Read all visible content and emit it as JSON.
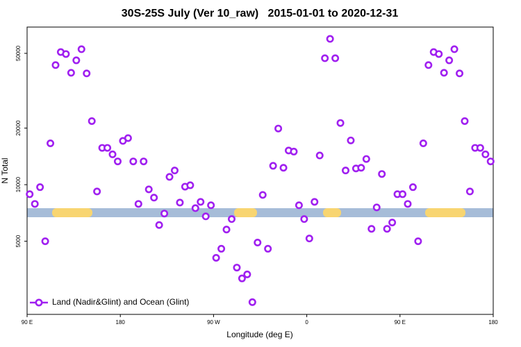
{
  "chart_data": {
    "type": "scatter",
    "title": "30S-25S July (Ver 10_raw)   2015-01-01 to 2020-12-31",
    "x_label": "Longitude (deg E)",
    "y_label": "N Total",
    "log_y": true,
    "legend": "bottom-left",
    "xlim": [
      90,
      540
    ],
    "xticks": [
      {
        "value": 90,
        "label": "90 E"
      },
      180,
      {
        "value": 270,
        "label": "90 W"
      },
      {
        "value": 360,
        "label": "0"
      },
      {
        "value": 450,
        "label": "90 E"
      },
      {
        "value": 540,
        "label": "180"
      }
    ],
    "ylim": [
      2040,
      69000
    ],
    "yticks": [
      5000,
      10000,
      20000,
      50000
    ],
    "x": [
      92.5,
      97.5,
      102.5,
      107.5,
      112.5,
      117.5,
      122.5,
      127.5,
      132.5,
      137.5,
      142.5,
      147.5,
      152.5,
      157.5,
      162.5,
      167.5,
      172.5,
      177.5,
      182.5,
      187.5,
      192.5,
      197.5,
      202.5,
      207.5,
      212.5,
      217.5,
      222.5,
      227.5,
      232.5,
      237.5,
      242.5,
      247.5,
      252.5,
      257.5,
      262.5,
      267.5,
      272.5,
      277.5,
      282.5,
      287.5,
      292.5,
      297.5,
      302.5,
      307.5,
      312.5,
      317.5,
      322.5,
      327.5,
      332.5,
      337.5,
      342.5,
      347.5,
      352.5,
      357.5,
      362.5,
      367.5,
      372.5,
      377.5,
      382.5,
      387.5,
      392.5,
      397.5,
      402.5,
      407.5,
      412.5,
      417.5,
      422.5,
      427.5,
      432.5,
      437.5,
      442.5,
      447.5,
      452.5,
      457.5,
      462.5,
      467.5,
      472.5,
      477.5,
      482.5,
      487.5,
      492.5,
      497.5,
      502.5,
      507.5,
      512.5,
      517.5,
      522.5,
      527.5,
      532.5,
      537.5
    ],
    "series": [
      {
        "name": "Land (Nadir&Glint) and Ocean (Glint)",
        "color": "#a020f0",
        "values": [
          8900,
          7900,
          9700,
          5000,
          16600,
          43300,
          50800,
          49600,
          39400,
          45900,
          52600,
          39100,
          21800,
          9200,
          15700,
          15700,
          14500,
          13300,
          17100,
          17700,
          13300,
          7900,
          13300,
          9440,
          8530,
          6100,
          7020,
          11000,
          11900,
          8030,
          9760,
          9930,
          7500,
          8100,
          6780,
          7770,
          4080,
          4560,
          5770,
          6560,
          3620,
          3170,
          3330,
          2370,
          4920,
          8820,
          4560,
          12600,
          19900,
          12300,
          15200,
          15000,
          7770,
          6560,
          5170,
          8100,
          14300,
          47100,
          59700,
          47100,
          21300,
          11900,
          17200,
          12200,
          12300,
          13700,
          5820,
          7570,
          11400,
          5820,
          6290,
          8900,
          8900,
          7900,
          9700,
          5000,
          16600,
          43300,
          50800,
          49600,
          39400,
          45900,
          52600,
          39100,
          21800,
          9200,
          15700,
          15700,
          14500,
          13300
        ]
      }
    ]
  }
}
